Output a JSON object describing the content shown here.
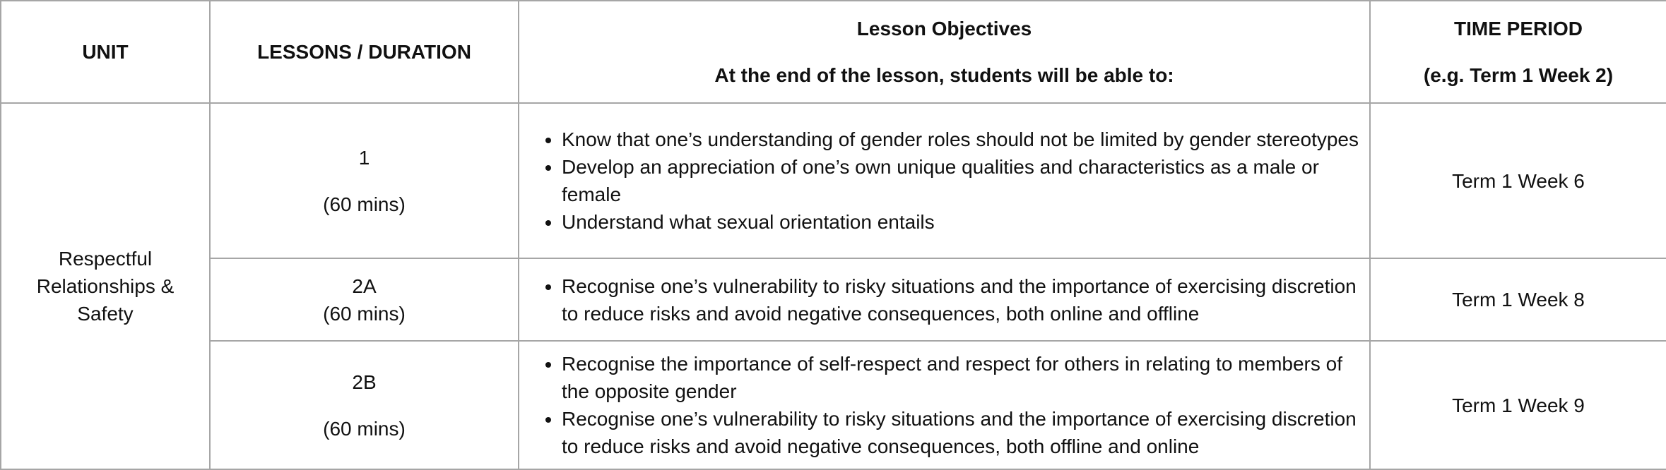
{
  "headers": {
    "unit": "UNIT",
    "lessons": "LESSONS / DURATION",
    "objectives_title": "Lesson Objectives",
    "objectives_sub": "At the end of the lesson, students will be able to:",
    "time_title": "TIME PERIOD",
    "time_sub": "(e.g. Term 1 Week 2)"
  },
  "unit_name": "Respectful Relationships & Safety",
  "rows": [
    {
      "lesson": "1",
      "duration": "(60 mins)",
      "objectives": [
        "Know that one’s understanding of gender roles should not be limited by gender stereotypes",
        "Develop an appreciation of one’s own unique qualities and characteristics as a male or female",
        "Understand what sexual orientation entails"
      ],
      "time_period": "Term 1 Week 6"
    },
    {
      "lesson": "2A",
      "duration": "(60 mins)",
      "objectives": [
        "Recognise one’s vulnerability to risky situations and the importance of exercising discretion to reduce risks and avoid negative consequences, both online and offline"
      ],
      "time_period": "Term 1 Week 8"
    },
    {
      "lesson": "2B",
      "duration": "(60 mins)",
      "objectives": [
        "Recognise the importance of self-respect and respect for others in relating to members of the opposite gender",
        "Recognise one’s vulnerability to risky situations and the importance of exercising discretion to reduce risks and avoid negative consequences, both offline and online"
      ],
      "time_period": "Term 1 Week 9"
    }
  ]
}
